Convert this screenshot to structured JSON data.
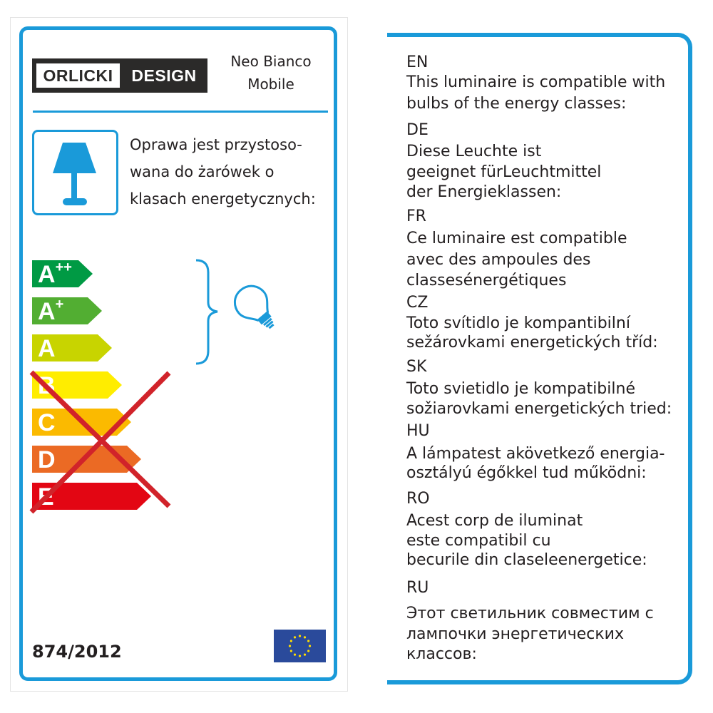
{
  "brand": {
    "logo_left": "ORLICKI",
    "logo_right": "DESIGN"
  },
  "product": {
    "line1": "Neo Bianco",
    "line2": "Mobile"
  },
  "polish_text": [
    "Oprawa jest przystoso-",
    "wana do żarówek o",
    "klasach energetycznych:"
  ],
  "energy_classes": [
    {
      "letter": "A",
      "sup": "++",
      "color": "#009a44",
      "compatible": true
    },
    {
      "letter": "A",
      "sup": "+",
      "color": "#52ae32",
      "compatible": true
    },
    {
      "letter": "A",
      "sup": "",
      "color": "#c8d400",
      "compatible": true
    },
    {
      "letter": "B",
      "sup": "",
      "color": "#ffed00",
      "compatible": false
    },
    {
      "letter": "C",
      "sup": "",
      "color": "#fbba00",
      "compatible": false
    },
    {
      "letter": "D",
      "sup": "",
      "color": "#eb6a24",
      "compatible": false
    },
    {
      "letter": "E",
      "sup": "",
      "color": "#e30613",
      "compatible": false
    }
  ],
  "cross_color": "#d1232a",
  "accent_color": "#1a9ad9",
  "icons": [
    "table-lamp-icon",
    "bracket-icon",
    "light-bulb-icon",
    "eu-flag-icon"
  ],
  "regulation": "874/2012",
  "translations": [
    {
      "code": "EN",
      "lines": [
        "This luminaire is compatible with",
        "bulbs of the energy classes:"
      ]
    },
    {
      "code": "DE",
      "lines": [
        "Diese Leuchte ist",
        "geeignet fürLeuchtmittel",
        "der Energieklassen:"
      ]
    },
    {
      "code": "FR",
      "lines": [
        "Ce luminaire est compatible",
        "avec des ampoules des",
        "classesénergétiques"
      ]
    },
    {
      "code": "CZ",
      "lines": [
        "Toto svítidlo je kompantibilní",
        "sežárovkami energetických tříd:"
      ]
    },
    {
      "code": "SK",
      "lines": [
        "Toto svietidlo je kompatibilné",
        "sožiarovkami energetických tried:"
      ]
    },
    {
      "code": "HU",
      "lines": [
        "A lámpatest akövetkező energia-",
        "osztályú égőkkel tud működni:"
      ]
    },
    {
      "code": "RO",
      "lines": [
        "Acest corp de iluminat",
        "este compatibil cu",
        "becurile din claseleenergetice:"
      ]
    },
    {
      "code": "RU",
      "lines": [
        "Этот светильник совместим с",
        "лампочки энергетических",
        "классов:"
      ]
    }
  ]
}
